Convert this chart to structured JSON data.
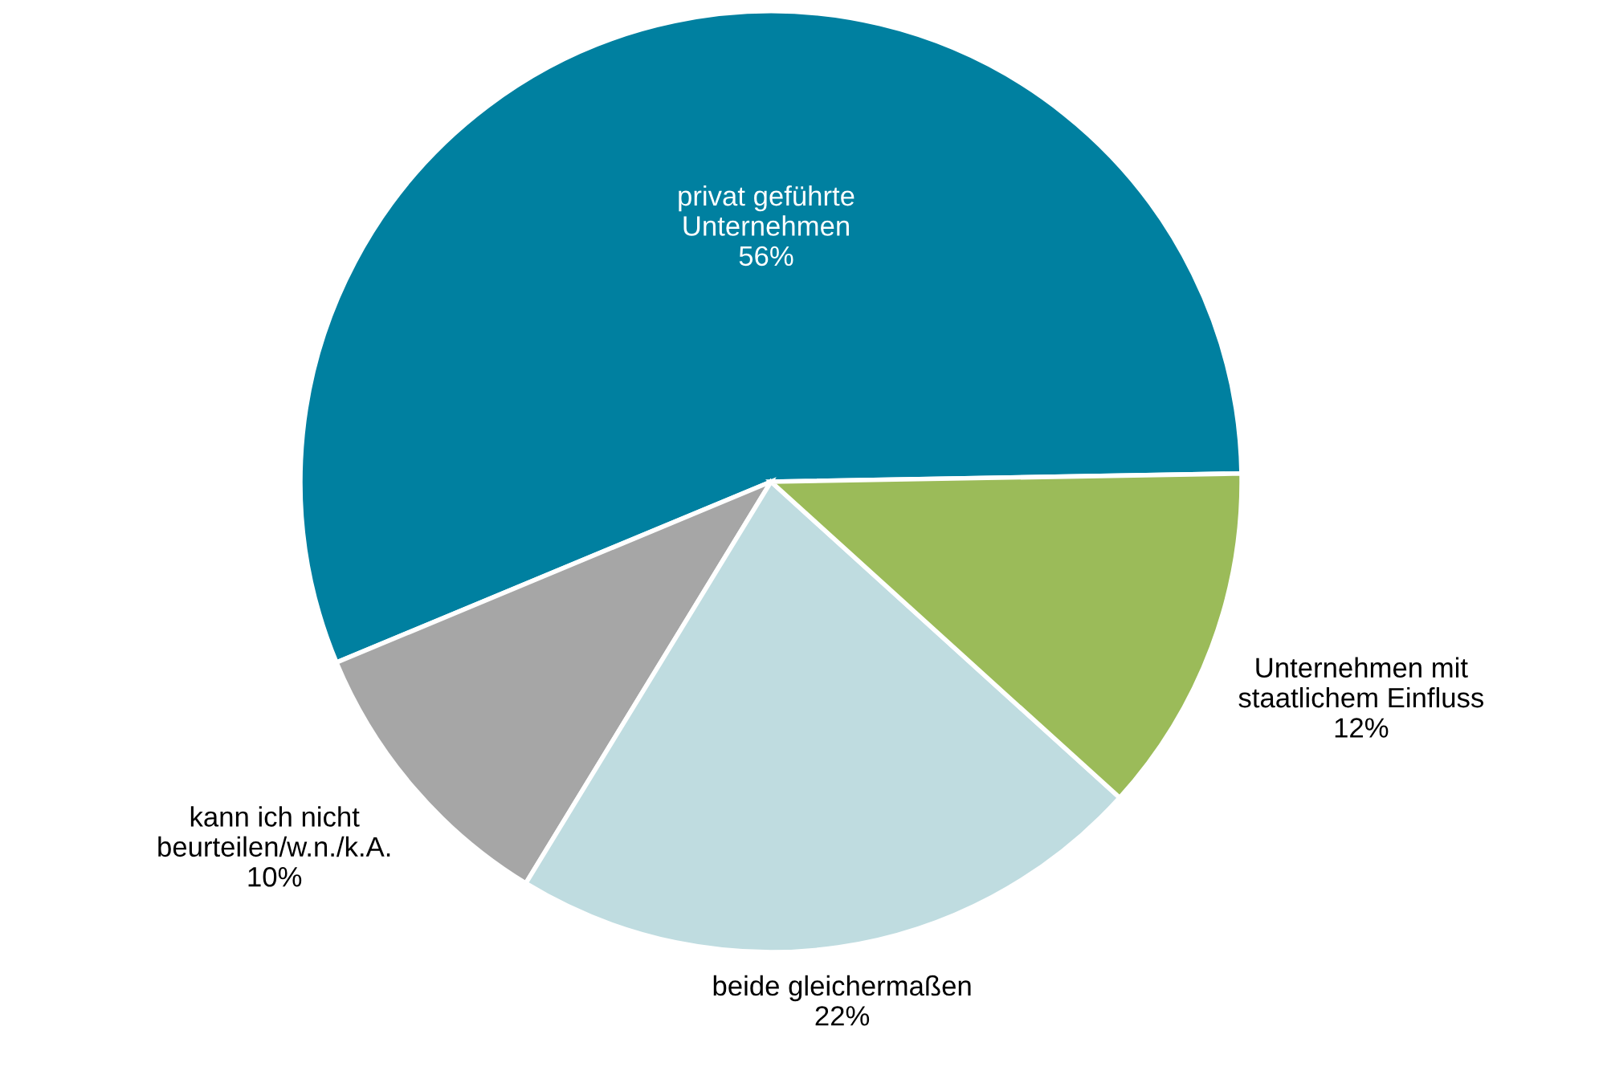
{
  "chart_data": {
    "type": "pie",
    "categories": [
      "privat geführte\nUnternehmen",
      "kann ich nicht\nbeurteilen/w.n./k.A.",
      "beide gleichermaßen",
      "Unternehmen mit\nstaatlichem Einfluss"
    ],
    "values": [
      56,
      10,
      22,
      12
    ],
    "value_labels": [
      "56%",
      "10%",
      "22%",
      "12%"
    ],
    "colors": [
      "#0080a0",
      "#a6a6a6",
      "#bfdce0",
      "#9bbb59"
    ],
    "legend": false
  }
}
